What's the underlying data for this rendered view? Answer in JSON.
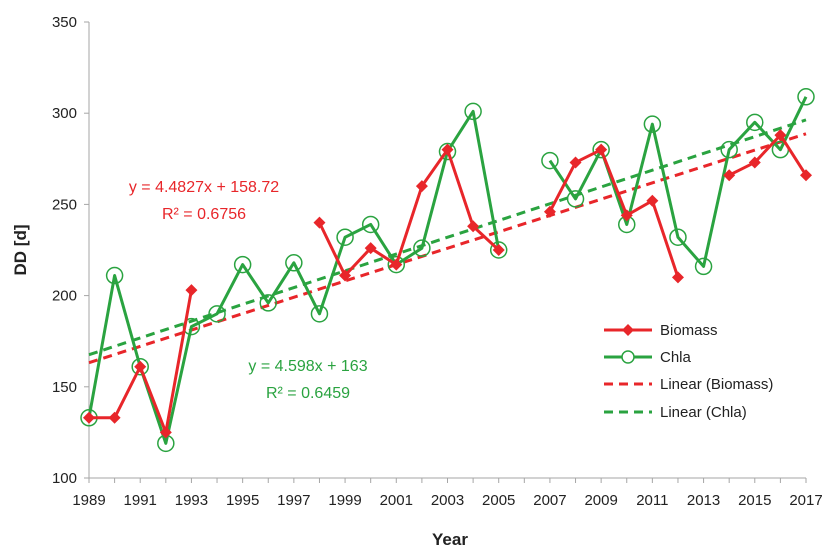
{
  "chart_data": {
    "type": "line",
    "xlabel": "Year",
    "ylabel": "DD [d]",
    "xlim": [
      1989,
      2017
    ],
    "ylim": [
      100,
      350
    ],
    "yticks": [
      100,
      150,
      200,
      250,
      300,
      350
    ],
    "xticks": [
      1989,
      1991,
      1993,
      1995,
      1997,
      1999,
      2001,
      2003,
      2005,
      2007,
      2009,
      2011,
      2013,
      2015,
      2017
    ],
    "grid": false,
    "legend_position": "right",
    "series": [
      {
        "name": "Biomass",
        "color": "#e8262a",
        "marker": "diamond",
        "segments": [
          [
            [
              1989,
              133
            ],
            [
              1990,
              133
            ],
            [
              1991,
              161
            ],
            [
              1992,
              125
            ],
            [
              1993,
              203
            ]
          ],
          [
            [
              1998,
              240
            ],
            [
              1999,
              211
            ],
            [
              2000,
              226
            ],
            [
              2001,
              217
            ],
            [
              2002,
              260
            ],
            [
              2003,
              280
            ],
            [
              2004,
              238
            ],
            [
              2005,
              225
            ]
          ],
          [
            [
              2007,
              246
            ],
            [
              2008,
              273
            ],
            [
              2009,
              280
            ],
            [
              2010,
              244
            ],
            [
              2011,
              252
            ],
            [
              2012,
              210
            ]
          ],
          [
            [
              2014,
              266
            ],
            [
              2015,
              273
            ],
            [
              2016,
              288
            ],
            [
              2017,
              266
            ]
          ]
        ]
      },
      {
        "name": "Chla",
        "color": "#2aa340",
        "marker": "circle",
        "segments": [
          [
            [
              1989,
              133
            ],
            [
              1990,
              211
            ],
            [
              1991,
              161
            ],
            [
              1992,
              119
            ],
            [
              1993,
              183
            ],
            [
              1994,
              190
            ],
            [
              1995,
              217
            ],
            [
              1996,
              196
            ],
            [
              1997,
              218
            ],
            [
              1998,
              190
            ],
            [
              1999,
              232
            ],
            [
              2000,
              239
            ],
            [
              2001,
              217
            ],
            [
              2002,
              226
            ],
            [
              2003,
              279
            ],
            [
              2004,
              301
            ],
            [
              2005,
              225
            ]
          ],
          [
            [
              2007,
              274
            ],
            [
              2008,
              253
            ],
            [
              2009,
              280
            ],
            [
              2010,
              239
            ],
            [
              2011,
              294
            ],
            [
              2012,
              232
            ],
            [
              2013,
              216
            ],
            [
              2014,
              280
            ],
            [
              2015,
              295
            ],
            [
              2016,
              280
            ],
            [
              2017,
              309
            ]
          ]
        ]
      }
    ],
    "trendlines": [
      {
        "name": "Linear (Biomass)",
        "color": "#e8262a",
        "slope": 4.4827,
        "intercept": 158.72,
        "x_start": 1989,
        "x_end": 2017
      },
      {
        "name": "Linear (Chla)",
        "color": "#2aa340",
        "slope": 4.598,
        "intercept": 163,
        "x_start": 1989,
        "x_end": 2017
      }
    ],
    "annotations": [
      {
        "text": "y = 4.4827x + 158.72",
        "color": "#e8262a"
      },
      {
        "text": "R² = 0.6756",
        "color": "#e8262a"
      },
      {
        "text": "y = 4.598x + 163",
        "color": "#2aa340"
      },
      {
        "text": "R² = 0.6459",
        "color": "#2aa340"
      }
    ]
  }
}
